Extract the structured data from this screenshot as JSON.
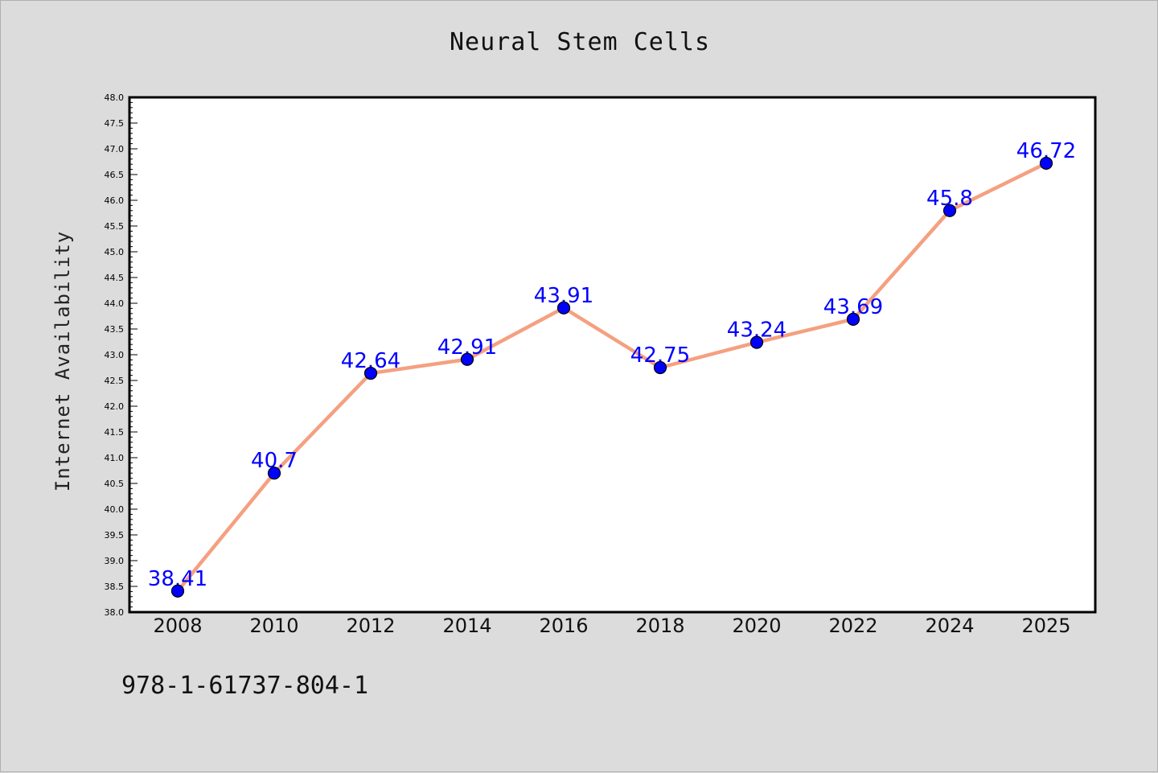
{
  "title": "Neural Stem Cells",
  "footer_text": "978-1-61737-804-1",
  "colors": {
    "background": "#dcdcdc",
    "plot_background": "#ffffff",
    "line": "#f5a080",
    "marker": "#0000ff",
    "data_label": "#0000ff"
  },
  "chart_data": {
    "type": "line",
    "title": "Neural Stem Cells",
    "xlabel": "",
    "ylabel": "Internet Availability",
    "categories": [
      "2008",
      "2010",
      "2012",
      "2014",
      "2016",
      "2018",
      "2020",
      "2022",
      "2024",
      "2025"
    ],
    "series": [
      {
        "values": [
          38.41,
          40.7,
          42.64,
          42.91,
          43.91,
          42.75,
          43.24,
          43.69,
          45.8,
          46.72
        ],
        "data_labels": [
          "38.41",
          "40.7",
          "42.64",
          "42.91",
          "43.91",
          "42.75",
          "43.24",
          "43.69",
          "45.8",
          "46.72"
        ]
      }
    ],
    "ylim": [
      38.0,
      48.0
    ],
    "y_ticks": [
      "38.0",
      "38.5",
      "39.0",
      "39.5",
      "40.0",
      "40.5",
      "41.0",
      "41.5",
      "42.0",
      "42.5",
      "43.0",
      "43.5",
      "44.0",
      "44.5",
      "45.0",
      "45.5",
      "46.0",
      "46.5",
      "47.0",
      "47.5",
      "48.0"
    ],
    "grid": false,
    "legend": "none"
  }
}
